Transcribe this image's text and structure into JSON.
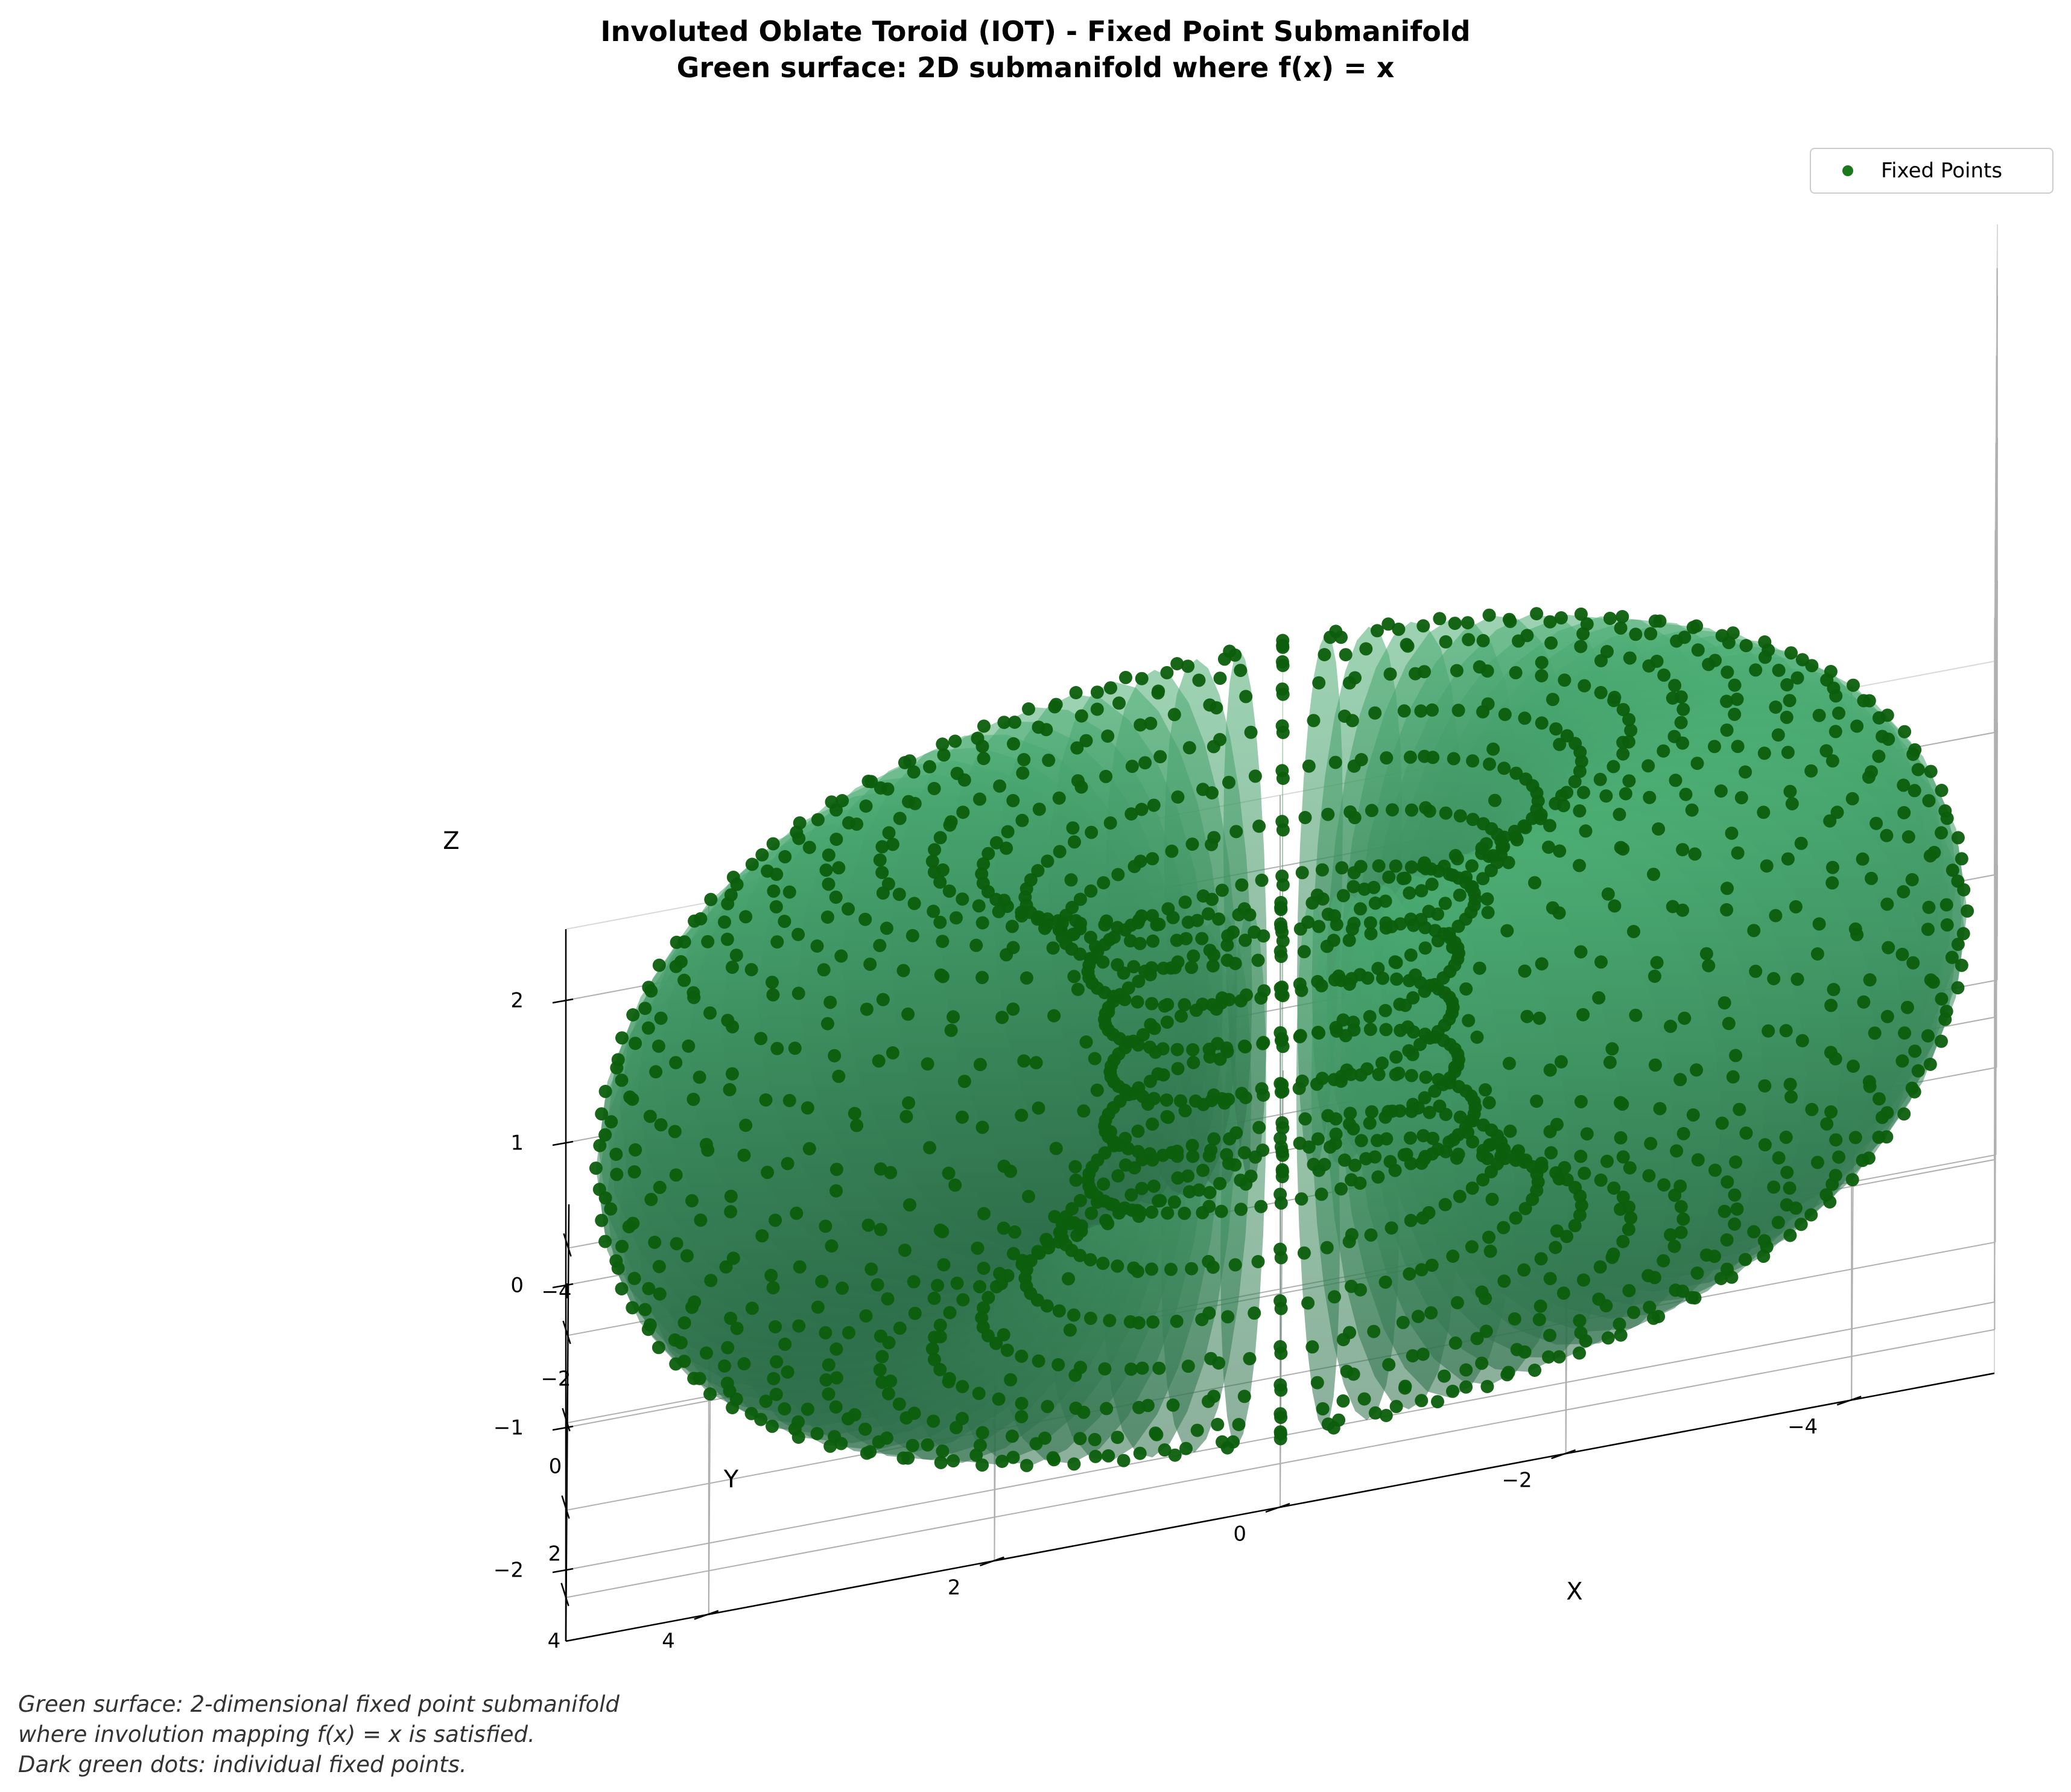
{
  "title_lines": [
    "Involuted Oblate Toroid (IOT) - Fixed Point Submanifold",
    "Green surface: 2D submanifold where f(x) = x"
  ],
  "legend": {
    "label": "Fixed Points"
  },
  "caption_lines": [
    "Green surface: 2-dimensional fixed point submanifold",
    "where involution mapping f(x) = x is satisfied.",
    "Dark green dots: individual fixed points."
  ],
  "colors": {
    "points": "#0c5e0c",
    "legend_marker": "#1a7a1a",
    "surface_light": "#4cae74",
    "surface_dark": "#2e6e4a",
    "grid": "#b0b0b0",
    "pane_edge": "#d9d9d9",
    "caption_text": "#333333"
  },
  "chart_data": {
    "type": "scatter3d",
    "title": "Involuted Oblate Toroid (IOT) - Fixed Point Submanifold\nGreen surface: 2D submanifold where f(x) = x",
    "xlabel": "X",
    "ylabel": "Y",
    "zlabel": "Z",
    "xlim": [
      -5,
      5
    ],
    "ylim": [
      -5,
      5
    ],
    "zlim": [
      -2.5,
      2.5
    ],
    "x_ticks": [
      4,
      2,
      0,
      -2,
      -4
    ],
    "y_ticks": [
      -4,
      -2,
      0,
      2,
      4
    ],
    "z_ticks": [
      2,
      1,
      0,
      -1,
      -2
    ],
    "x_tick_labels": [
      "4",
      "2",
      "0",
      "−2",
      "−4"
    ],
    "y_tick_labels": [
      "−4",
      "−2",
      "0",
      "2",
      "4"
    ],
    "z_tick_labels": [
      "2",
      "1",
      "0",
      "−1",
      "−2"
    ],
    "grid": true,
    "legend_position": "top-right",
    "surface": {
      "kind": "torus",
      "major_radius": 3,
      "minor_radius": 1.8,
      "vertical_scale": 1.0,
      "center": [
        0,
        0,
        -0.75
      ]
    },
    "series": [
      {
        "name": "Fixed Points",
        "kind": "torus_sampling",
        "n_u": 60,
        "n_v": 30,
        "color": "#0c5e0c"
      }
    ]
  }
}
